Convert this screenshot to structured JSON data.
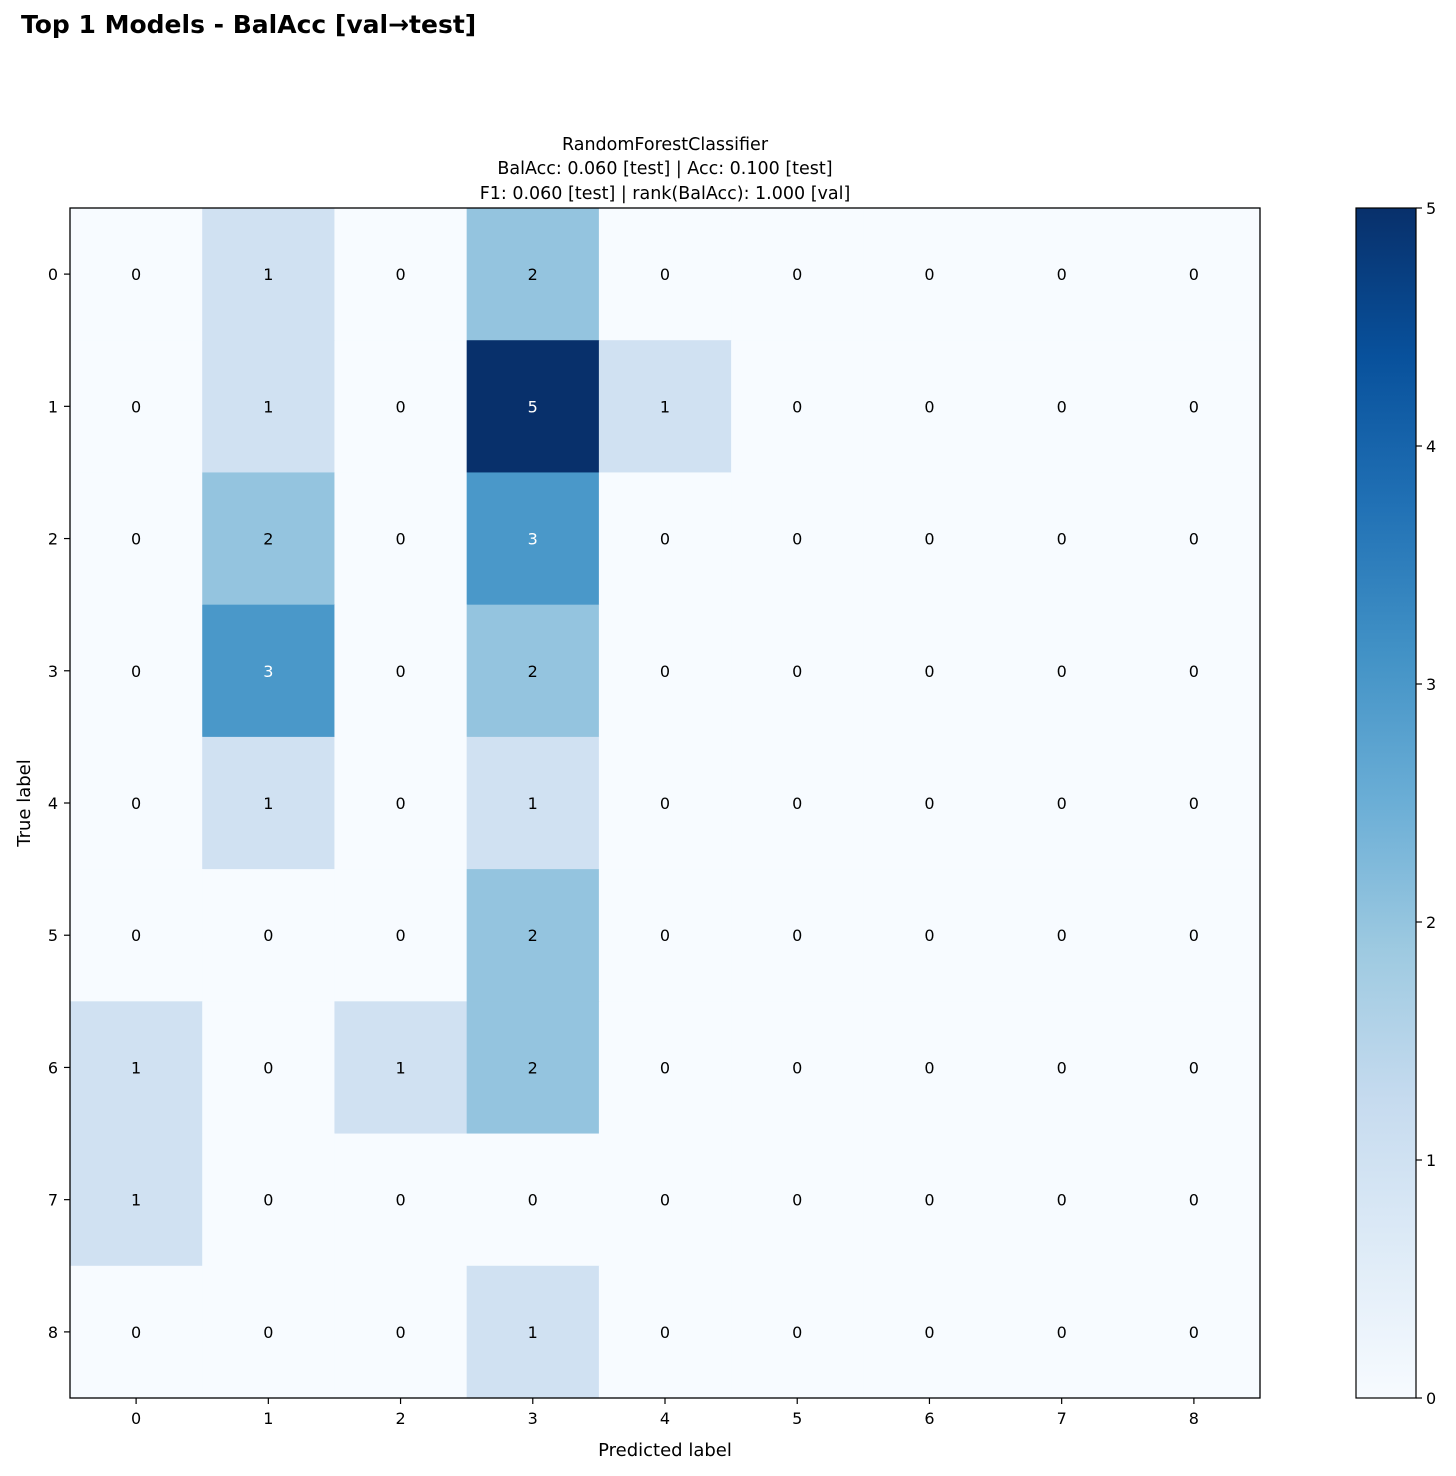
{
  "suptitle": "Top 1 Models - BalAcc [val→test]",
  "chart_data": {
    "type": "heatmap",
    "title_lines": [
      "RandomForestClassifier",
      "BalAcc: 0.060 [test] | Acc: 0.100 [test]",
      "F1: 0.060 [test] | rank(BalAcc): 1.000 [val]"
    ],
    "xlabel": "Predicted label",
    "ylabel": "True label",
    "x_categories": [
      "0",
      "1",
      "2",
      "3",
      "4",
      "5",
      "6",
      "7",
      "8"
    ],
    "y_categories": [
      "0",
      "1",
      "2",
      "3",
      "4",
      "5",
      "6",
      "7",
      "8"
    ],
    "matrix": [
      [
        0,
        1,
        0,
        2,
        0,
        0,
        0,
        0,
        0
      ],
      [
        0,
        1,
        0,
        5,
        1,
        0,
        0,
        0,
        0
      ],
      [
        0,
        2,
        0,
        3,
        0,
        0,
        0,
        0,
        0
      ],
      [
        0,
        3,
        0,
        2,
        0,
        0,
        0,
        0,
        0
      ],
      [
        0,
        1,
        0,
        1,
        0,
        0,
        0,
        0,
        0
      ],
      [
        0,
        0,
        0,
        2,
        0,
        0,
        0,
        0,
        0
      ],
      [
        1,
        0,
        1,
        2,
        0,
        0,
        0,
        0,
        0
      ],
      [
        1,
        0,
        0,
        0,
        0,
        0,
        0,
        0,
        0
      ],
      [
        0,
        0,
        0,
        1,
        0,
        0,
        0,
        0,
        0
      ]
    ],
    "colormap": "Blues",
    "vmin": 0,
    "vmax": 5,
    "colorbar_ticks": [
      "0",
      "1",
      "2",
      "3",
      "4",
      "5"
    ],
    "text_color_dark": "#000000",
    "text_color_light": "#ffffff"
  }
}
